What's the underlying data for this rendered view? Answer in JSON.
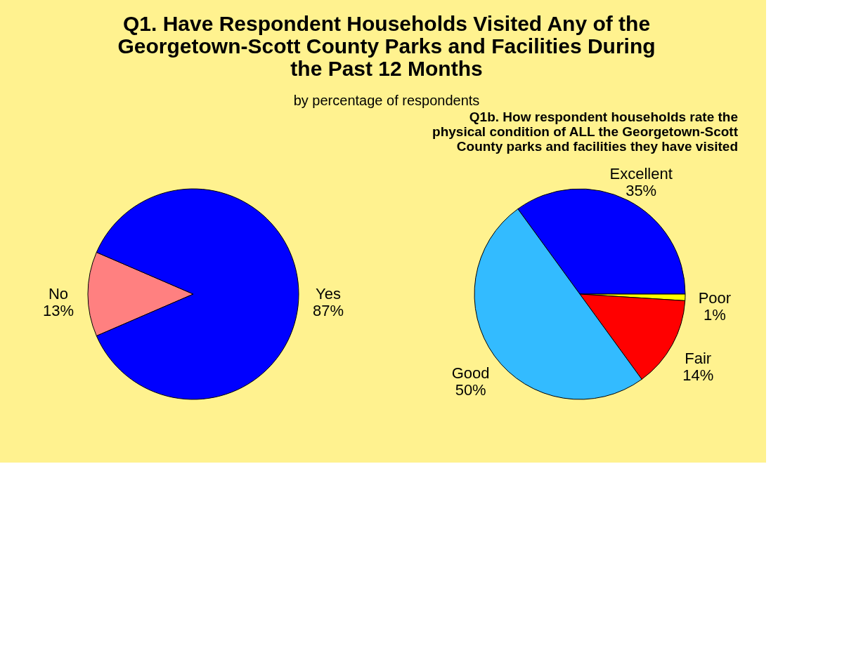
{
  "chart_data": [
    {
      "type": "pie",
      "title": "Q1.  Have Respondent Households Visited Any of the Georgetown-Scott County Parks and Facilities During the Past 12 Months",
      "subtitle": "by percentage of respondents",
      "categories": [
        "No",
        "Yes"
      ],
      "values": [
        13,
        87
      ],
      "colors": [
        "#ff8080",
        "#0000ff"
      ],
      "value_labels": [
        "13%",
        "87%"
      ]
    },
    {
      "type": "pie",
      "title": "Q1b.  How respondent households rate the physical condition of ALL the Georgetown-Scott County parks and facilities they have visited",
      "categories": [
        "Excellent",
        "Poor",
        "Fair",
        "Good"
      ],
      "values": [
        35,
        1,
        14,
        50
      ],
      "colors": [
        "#0000ff",
        "#ffff00",
        "#ff0000",
        "#33bbff"
      ],
      "value_labels": [
        "35%",
        "1%",
        "14%",
        "50%"
      ]
    }
  ]
}
